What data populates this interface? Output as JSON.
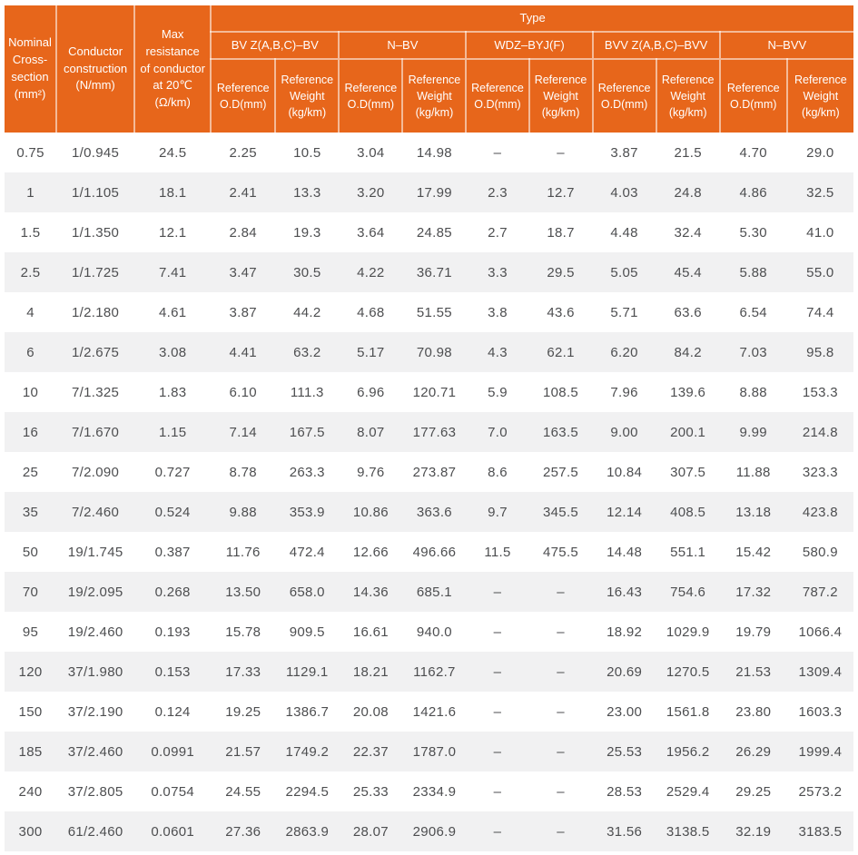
{
  "table": {
    "header": {
      "nominal": "Nominal\nCross-\nsection\n(mm²)",
      "conductor": "Conductor\nconstruction\n(N/mm)",
      "resistance": "Max\nresistance\nof conductor\nat 20℃\n(Ω/km)",
      "type_label": "Type",
      "groups": [
        "BV Z(A,B,C)–BV",
        "N–BV",
        "WDZ–BYJ(F)",
        "BVV Z(A,B,C)–BVV",
        "N–BVV"
      ],
      "sub_od": "Reference\nO.D(mm)",
      "sub_weight": "Reference\nWeight\n(kg/km)"
    },
    "rows": [
      [
        "0.75",
        "1/0.945",
        "24.5",
        "2.25",
        "10.5",
        "3.04",
        "14.98",
        "–",
        "–",
        "3.87",
        "21.5",
        "4.70",
        "29.0"
      ],
      [
        "1",
        "1/1.105",
        "18.1",
        "2.41",
        "13.3",
        "3.20",
        "17.99",
        "2.3",
        "12.7",
        "4.03",
        "24.8",
        "4.86",
        "32.5"
      ],
      [
        "1.5",
        "1/1.350",
        "12.1",
        "2.84",
        "19.3",
        "3.64",
        "24.85",
        "2.7",
        "18.7",
        "4.48",
        "32.4",
        "5.30",
        "41.0"
      ],
      [
        "2.5",
        "1/1.725",
        "7.41",
        "3.47",
        "30.5",
        "4.22",
        "36.71",
        "3.3",
        "29.5",
        "5.05",
        "45.4",
        "5.88",
        "55.0"
      ],
      [
        "4",
        "1/2.180",
        "4.61",
        "3.87",
        "44.2",
        "4.68",
        "51.55",
        "3.8",
        "43.6",
        "5.71",
        "63.6",
        "6.54",
        "74.4"
      ],
      [
        "6",
        "1/2.675",
        "3.08",
        "4.41",
        "63.2",
        "5.17",
        "70.98",
        "4.3",
        "62.1",
        "6.20",
        "84.2",
        "7.03",
        "95.8"
      ],
      [
        "10",
        "7/1.325",
        "1.83",
        "6.10",
        "111.3",
        "6.96",
        "120.71",
        "5.9",
        "108.5",
        "7.96",
        "139.6",
        "8.88",
        "153.3"
      ],
      [
        "16",
        "7/1.670",
        "1.15",
        "7.14",
        "167.5",
        "8.07",
        "177.63",
        "7.0",
        "163.5",
        "9.00",
        "200.1",
        "9.99",
        "214.8"
      ],
      [
        "25",
        "7/2.090",
        "0.727",
        "8.78",
        "263.3",
        "9.76",
        "273.87",
        "8.6",
        "257.5",
        "10.84",
        "307.5",
        "11.88",
        "323.3"
      ],
      [
        "35",
        "7/2.460",
        "0.524",
        "9.88",
        "353.9",
        "10.86",
        "363.6",
        "9.7",
        "345.5",
        "12.14",
        "408.5",
        "13.18",
        "423.8"
      ],
      [
        "50",
        "19/1.745",
        "0.387",
        "11.76",
        "472.4",
        "12.66",
        "496.66",
        "11.5",
        "475.5",
        "14.48",
        "551.1",
        "15.42",
        "580.9"
      ],
      [
        "70",
        "19/2.095",
        "0.268",
        "13.50",
        "658.0",
        "14.36",
        "685.1",
        "–",
        "–",
        "16.43",
        "754.6",
        "17.32",
        "787.2"
      ],
      [
        "95",
        "19/2.460",
        "0.193",
        "15.78",
        "909.5",
        "16.61",
        "940.0",
        "–",
        "–",
        "18.92",
        "1029.9",
        "19.79",
        "1066.4"
      ],
      [
        "120",
        "37/1.980",
        "0.153",
        "17.33",
        "1129.1",
        "18.21",
        "1162.7",
        "–",
        "–",
        "20.69",
        "1270.5",
        "21.53",
        "1309.4"
      ],
      [
        "150",
        "37/2.190",
        "0.124",
        "19.25",
        "1386.7",
        "20.08",
        "1421.6",
        "–",
        "–",
        "23.00",
        "1561.8",
        "23.80",
        "1603.3"
      ],
      [
        "185",
        "37/2.460",
        "0.0991",
        "21.57",
        "1749.2",
        "22.37",
        "1787.0",
        "–",
        "–",
        "25.53",
        "1956.2",
        "26.29",
        "1999.4"
      ],
      [
        "240",
        "37/2.805",
        "0.0754",
        "24.55",
        "2294.5",
        "25.33",
        "2334.9",
        "–",
        "–",
        "28.53",
        "2529.4",
        "29.25",
        "2573.2"
      ],
      [
        "300",
        "61/2.460",
        "0.0601",
        "27.36",
        "2863.9",
        "28.07",
        "2906.9",
        "–",
        "–",
        "31.56",
        "3138.5",
        "32.19",
        "3183.5"
      ]
    ]
  },
  "colors": {
    "header_background": "#E7661B",
    "header_text": "#FFFFFF",
    "header_divider": "rgba(255,255,255,0.55)",
    "row_stripe": "#F1F1F2",
    "body_text": "#4D4E50"
  }
}
